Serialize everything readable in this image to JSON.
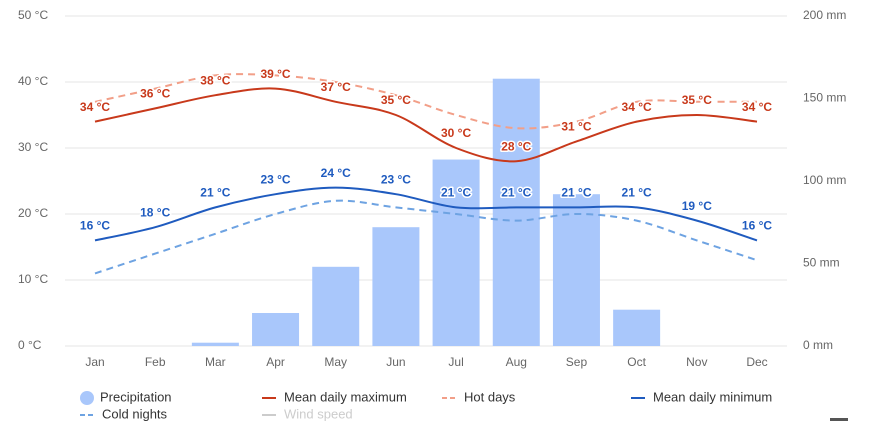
{
  "chart_data": {
    "type": "combo",
    "categories": [
      "Jan",
      "Feb",
      "Mar",
      "Apr",
      "May",
      "Jun",
      "Jul",
      "Aug",
      "Sep",
      "Oct",
      "Nov",
      "Dec"
    ],
    "ylim": [
      0,
      50
    ],
    "yticks": [
      {
        "value": 0,
        "label": "0 °C"
      },
      {
        "value": 10,
        "label": "10 °C"
      },
      {
        "value": 20,
        "label": "20 °C"
      },
      {
        "value": 30,
        "label": "30 °C"
      },
      {
        "value": 40,
        "label": "40 °C"
      },
      {
        "value": 50,
        "label": "50 °C"
      }
    ],
    "y2lim": [
      0,
      200
    ],
    "y2ticks": [
      {
        "value": 0,
        "label": "0 mm"
      },
      {
        "value": 50,
        "label": "50 mm"
      },
      {
        "value": 100,
        "label": "100 mm"
      },
      {
        "value": 150,
        "label": "150 mm"
      },
      {
        "value": 200,
        "label": "200 mm"
      }
    ],
    "grid": true,
    "legend": "bottom",
    "series": [
      {
        "name": "Precipitation",
        "type": "bar",
        "axis": "y2",
        "color": "#a9c7fb",
        "values": [
          0,
          0,
          2,
          20,
          48,
          72,
          113,
          162,
          92,
          22,
          0,
          0
        ]
      },
      {
        "name": "Mean daily maximum",
        "type": "line",
        "color": "#c8391b",
        "values": [
          34,
          36,
          38,
          39,
          37,
          35,
          30,
          28,
          31,
          34,
          35,
          34
        ],
        "value_labels": [
          "34 °C",
          "36 °C",
          "38 °C",
          "39 °C",
          "37 °C",
          "35 °C",
          "30 °C",
          "28 °C",
          "31 °C",
          "34 °C",
          "35 °C",
          "34 °C"
        ]
      },
      {
        "name": "Hot days",
        "type": "line",
        "dashed": true,
        "color": "#f29f88",
        "values": [
          37,
          39,
          41,
          41,
          40,
          38,
          35,
          33,
          34,
          37,
          37,
          37
        ]
      },
      {
        "name": "Mean daily minimum",
        "type": "line",
        "color": "#1f5bbf",
        "values": [
          16,
          18,
          21,
          23,
          24,
          23,
          21,
          21,
          21,
          21,
          19,
          16
        ],
        "value_labels": [
          "16 °C",
          "18 °C",
          "21 °C",
          "23 °C",
          "24 °C",
          "23 °C",
          "21 °C",
          "21 °C",
          "21 °C",
          "21 °C",
          "19 °C",
          "16 °C"
        ]
      },
      {
        "name": "Cold nights",
        "type": "line",
        "dashed": true,
        "color": "#6ea3e2",
        "values": [
          11,
          14,
          17,
          20,
          22,
          21,
          20,
          19,
          20,
          19,
          16,
          13
        ]
      },
      {
        "name": "Wind speed",
        "type": "line",
        "color": "#cccccc",
        "visible": false
      }
    ]
  }
}
